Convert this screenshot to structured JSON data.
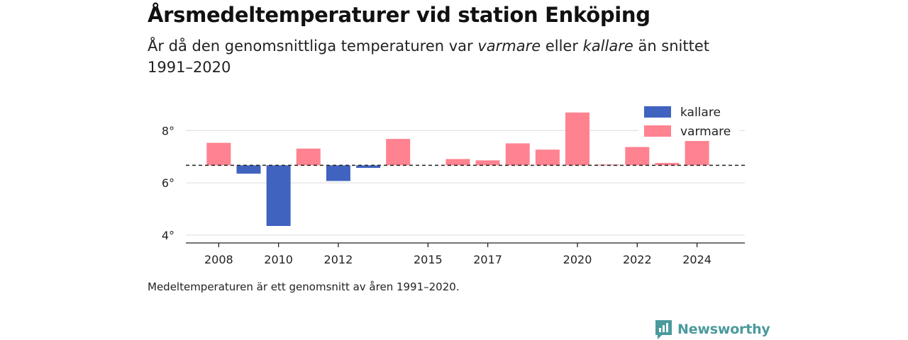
{
  "header": {
    "title": "Årsmedeltemperaturer vid station Enköping",
    "subtitle_pre": "År då den genomsnittliga temperaturen var ",
    "subtitle_warmer": "varmare",
    "subtitle_mid": " eller ",
    "subtitle_colder": "kallare",
    "subtitle_post": " än snittet 1991–2020"
  },
  "footer": {
    "note": "Medeltemperaturen är ett genomsnitt av åren 1991–2020.",
    "brand": "Newsworthy"
  },
  "colors": {
    "colder": "#4063c0",
    "warmer": "#ff8290",
    "brand": "#4a9a9c"
  },
  "chart_data": {
    "type": "bar",
    "baseline": 6.67,
    "ylim": [
      3.7,
      9.2
    ],
    "xlim": [
      2006.9,
      2025.6
    ],
    "yticks": [
      4,
      6,
      8
    ],
    "ytick_labels": [
      "4°",
      "6°",
      "8°"
    ],
    "xticks": [
      2008,
      2010,
      2012,
      2015,
      2017,
      2020,
      2022,
      2024
    ],
    "xtick_labels": [
      "2008",
      "2010",
      "2012",
      "2015",
      "2017",
      "2020",
      "2022",
      "2024"
    ],
    "legend": {
      "position": "top-right",
      "items": [
        {
          "key": "colder",
          "label": "kallare"
        },
        {
          "key": "warmer",
          "label": "varmare"
        }
      ]
    },
    "grid": true,
    "data": [
      {
        "year": 2008,
        "value": 7.53
      },
      {
        "year": 2009,
        "value": 6.35
      },
      {
        "year": 2010,
        "value": 4.35
      },
      {
        "year": 2011,
        "value": 7.31
      },
      {
        "year": 2012,
        "value": 6.07
      },
      {
        "year": 2013,
        "value": 6.57
      },
      {
        "year": 2014,
        "value": 7.68
      },
      {
        "year": 2016,
        "value": 6.91
      },
      {
        "year": 2017,
        "value": 6.86
      },
      {
        "year": 2018,
        "value": 7.51
      },
      {
        "year": 2019,
        "value": 7.27
      },
      {
        "year": 2020,
        "value": 8.69
      },
      {
        "year": 2021,
        "value": 6.7
      },
      {
        "year": 2022,
        "value": 7.37
      },
      {
        "year": 2023,
        "value": 6.76
      },
      {
        "year": 2024,
        "value": 7.6
      }
    ]
  }
}
